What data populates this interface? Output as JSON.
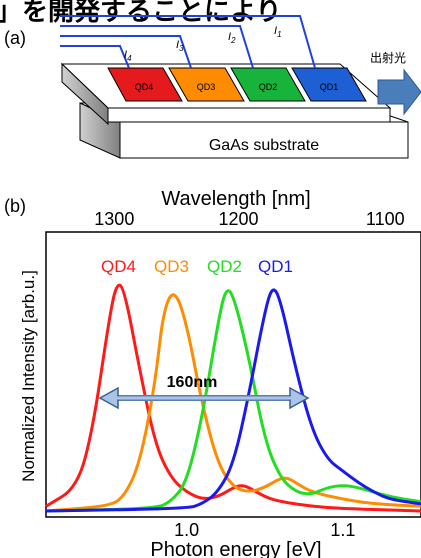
{
  "header_fragment": "」を開発することにより",
  "panel_a": {
    "label": "(a)",
    "output_label": "出射光",
    "substrate_label": "GaAs substrate",
    "current_labels": [
      "I",
      "I",
      "I",
      "I"
    ],
    "current_subscripts": [
      "4",
      "3",
      "2",
      "1"
    ],
    "regions": [
      {
        "name": "QD4",
        "color": "#e41a1c"
      },
      {
        "name": "QD3",
        "color": "#ff8c00"
      },
      {
        "name": "QD2",
        "color": "#17b33a"
      },
      {
        "name": "QD1",
        "color": "#1f5fd6"
      }
    ],
    "wire_color": "#2040e0",
    "arrow_color": "#4a7ebb"
  },
  "panel_b": {
    "label": "(b)",
    "top_axis_title": "Wavelength [nm]",
    "top_ticks": [
      "1300",
      "1200",
      "1100"
    ],
    "bottom_axis_title": "Photon energy [eV]",
    "bottom_ticks": [
      "1.0",
      "1.1"
    ],
    "y_axis_title": "Normalized Intensity [arb.u.]",
    "arrow_label": "160nm",
    "series_labels": [
      "QD4",
      "QD3",
      "QD2",
      "QD1"
    ],
    "series_colors": [
      "#ff1a1a",
      "#ff8c00",
      "#22dd22",
      "#1a1aee"
    ]
  },
  "chart_data": {
    "type": "line",
    "x_unit": "eV",
    "xlim": [
      0.91,
      1.15
    ],
    "ylim": [
      0,
      1.0
    ],
    "series": [
      {
        "name": "QD4",
        "color": "#ff1a1a",
        "points": [
          [
            0.91,
            0.02
          ],
          [
            0.93,
            0.1
          ],
          [
            0.94,
            0.35
          ],
          [
            0.95,
            0.8
          ],
          [
            0.955,
            0.97
          ],
          [
            0.96,
            0.95
          ],
          [
            0.97,
            0.6
          ],
          [
            0.98,
            0.28
          ],
          [
            0.99,
            0.14
          ],
          [
            1.0,
            0.08
          ],
          [
            1.01,
            0.05
          ],
          [
            1.02,
            0.06
          ],
          [
            1.03,
            0.1
          ],
          [
            1.035,
            0.11
          ],
          [
            1.04,
            0.1
          ],
          [
            1.05,
            0.06
          ],
          [
            1.06,
            0.04
          ],
          [
            1.08,
            0.02
          ],
          [
            1.1,
            0.01
          ],
          [
            1.15,
            0.0
          ]
        ]
      },
      {
        "name": "QD3",
        "color": "#ff8c00",
        "points": [
          [
            0.91,
            0.0
          ],
          [
            0.95,
            0.02
          ],
          [
            0.96,
            0.06
          ],
          [
            0.97,
            0.2
          ],
          [
            0.98,
            0.55
          ],
          [
            0.985,
            0.85
          ],
          [
            0.992,
            0.95
          ],
          [
            1.0,
            0.8
          ],
          [
            1.01,
            0.45
          ],
          [
            1.02,
            0.2
          ],
          [
            1.03,
            0.1
          ],
          [
            1.04,
            0.08
          ],
          [
            1.05,
            0.1
          ],
          [
            1.06,
            0.14
          ],
          [
            1.065,
            0.14
          ],
          [
            1.07,
            0.12
          ],
          [
            1.08,
            0.08
          ],
          [
            1.1,
            0.05
          ],
          [
            1.12,
            0.03
          ],
          [
            1.15,
            0.02
          ]
        ]
      },
      {
        "name": "QD2",
        "color": "#22dd22",
        "points": [
          [
            0.91,
            0.0
          ],
          [
            0.98,
            0.01
          ],
          [
            0.99,
            0.04
          ],
          [
            1.0,
            0.12
          ],
          [
            1.01,
            0.4
          ],
          [
            1.02,
            0.8
          ],
          [
            1.025,
            0.95
          ],
          [
            1.03,
            0.92
          ],
          [
            1.04,
            0.65
          ],
          [
            1.05,
            0.3
          ],
          [
            1.06,
            0.14
          ],
          [
            1.07,
            0.08
          ],
          [
            1.08,
            0.07
          ],
          [
            1.09,
            0.1
          ],
          [
            1.1,
            0.11
          ],
          [
            1.11,
            0.1
          ],
          [
            1.13,
            0.06
          ],
          [
            1.15,
            0.04
          ]
        ]
      },
      {
        "name": "QD1",
        "color": "#1a1aee",
        "points": [
          [
            0.91,
            0.0
          ],
          [
            1.0,
            0.01
          ],
          [
            1.01,
            0.03
          ],
          [
            1.02,
            0.08
          ],
          [
            1.03,
            0.2
          ],
          [
            1.04,
            0.5
          ],
          [
            1.05,
            0.85
          ],
          [
            1.055,
            0.96
          ],
          [
            1.06,
            0.9
          ],
          [
            1.07,
            0.6
          ],
          [
            1.08,
            0.35
          ],
          [
            1.09,
            0.22
          ],
          [
            1.1,
            0.17
          ],
          [
            1.11,
            0.12
          ],
          [
            1.12,
            0.08
          ],
          [
            1.13,
            0.05
          ],
          [
            1.15,
            0.03
          ]
        ]
      }
    ]
  }
}
